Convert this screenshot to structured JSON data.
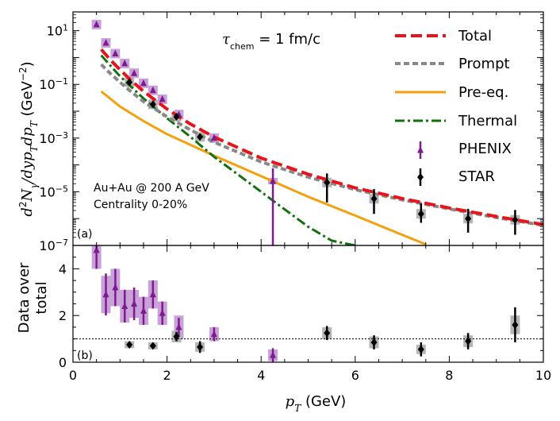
{
  "colors": {
    "total": "#e8141b",
    "prompt": "#888888",
    "preeq": "#f5a00e",
    "thermal": "#13700f",
    "phenix": "#7d1b8f",
    "phenix_box": "#c9a1d9",
    "star": "#000000",
    "star_box": "#b5b5b5"
  },
  "chart_data": [
    {
      "id": "spectrum",
      "panel_label": "(a)",
      "type": "line",
      "yscale": "log",
      "ylabel_text": "d²N_γ / dy p_T dp_T (GeV⁻²)",
      "ylabel": {
        "main": "d",
        "sup": "2",
        "mid": "N",
        "sub": "γ",
        "rest": "/dyp",
        "sub2": "T",
        "rest2": "dp",
        "sub3": "T",
        "unit": " (GeV",
        "unitsup": "−2",
        "close": ")"
      },
      "xlim": [
        0,
        10
      ],
      "ylim": [
        1e-07,
        50
      ],
      "yticks": [
        {
          "value": 1e-07,
          "base": "10",
          "exp": "−7"
        },
        {
          "value": 1e-05,
          "base": "10",
          "exp": "−5"
        },
        {
          "value": 0.001,
          "base": "10",
          "exp": "−3"
        },
        {
          "value": 0.1,
          "base": "10",
          "exp": "−1"
        },
        {
          "value": 10,
          "base": "10",
          "exp": "1"
        }
      ],
      "annotation_tau": {
        "sym": "τ",
        "sub": "chem",
        "rest": " = 1 fm/c"
      },
      "annotation_system": "Au+Au @ 200 A GeV",
      "annotation_centrality": "Centrality 0-20%",
      "legend": [
        {
          "key": "total",
          "label": "Total"
        },
        {
          "key": "prompt",
          "label": "Prompt"
        },
        {
          "key": "preeq",
          "label": "Pre-eq."
        },
        {
          "key": "thermal",
          "label": "Thermal"
        },
        {
          "key": "phenix",
          "label": "PHENIX"
        },
        {
          "key": "star",
          "label": "STAR"
        }
      ],
      "series": [
        {
          "key": "total",
          "name": "Total",
          "x": [
            0.6,
            0.8,
            1.0,
            1.2,
            1.5,
            2.0,
            2.5,
            3.0,
            4.0,
            5.0,
            6.0,
            7.0,
            8.0,
            9.0,
            10.0
          ],
          "y": [
            2.0,
            0.8,
            0.35,
            0.16,
            0.055,
            0.012,
            0.0033,
            0.0011,
            0.00018,
            4.5e-05,
            1.4e-05,
            5.6e-06,
            2.5e-06,
            1.2e-06,
            6e-07
          ]
        },
        {
          "key": "prompt",
          "name": "Prompt",
          "x": [
            0.6,
            0.8,
            1.0,
            1.2,
            1.5,
            2.0,
            2.5,
            3.0,
            4.0,
            5.0,
            6.0,
            7.0,
            8.0,
            9.0,
            10.0
          ],
          "y": [
            0.55,
            0.25,
            0.12,
            0.06,
            0.023,
            0.0062,
            0.002,
            0.0007,
            0.00013,
            3.5e-05,
            1.2e-05,
            5e-06,
            2.3e-06,
            1.1e-06,
            5.6e-07
          ]
        },
        {
          "key": "preeq",
          "name": "Pre-eq.",
          "x": [
            0.6,
            1.0,
            1.5,
            2.0,
            3.0,
            4.0,
            5.0,
            6.0,
            7.0,
            7.5
          ],
          "y": [
            0.055,
            0.015,
            0.0043,
            0.0014,
            0.00022,
            3.8e-05,
            6.5e-06,
            1.3e-06,
            2.5e-07,
            1.1e-07
          ]
        },
        {
          "key": "thermal",
          "name": "Thermal",
          "x": [
            0.6,
            1.0,
            1.5,
            2.0,
            2.5,
            3.0,
            3.5,
            4.0,
            4.5,
            5.0,
            5.5,
            6.0
          ],
          "y": [
            1.2,
            0.2,
            0.03,
            0.0055,
            0.0011,
            0.0002,
            4.5e-05,
            1e-05,
            2.2e-06,
            5e-07,
            1.5e-07,
            1e-07
          ]
        }
      ],
      "phenix": {
        "name": "PHENIX",
        "x": [
          0.5,
          0.7,
          0.9,
          1.1,
          1.3,
          1.5,
          1.7,
          1.9,
          2.25,
          3.0,
          4.25
        ],
        "y": [
          17,
          3.5,
          1.4,
          0.6,
          0.26,
          0.11,
          0.06,
          0.028,
          0.0075,
          0.001,
          2.5e-05
        ],
        "yerr_lo": [
          17,
          3.5,
          1.4,
          0.6,
          0.26,
          0.11,
          0.06,
          0.028,
          0.0075,
          0.001,
          1e-07
        ],
        "yerr_hi": [
          17,
          3.5,
          1.4,
          0.6,
          0.26,
          0.11,
          0.06,
          0.028,
          0.0075,
          0.001,
          5e-05
        ]
      },
      "star": {
        "name": "STAR",
        "x": [
          1.2,
          1.7,
          2.2,
          2.7,
          5.4,
          6.4,
          7.4,
          8.4,
          9.4
        ],
        "y": [
          0.12,
          0.018,
          0.0062,
          0.0011,
          2.2e-05,
          5.5e-06,
          1.5e-06,
          1e-06,
          9e-07
        ],
        "yerr_lo": [
          0.12,
          0.018,
          0.0062,
          0.0011,
          1.8e-05,
          4e-06,
          8e-07,
          7e-07,
          6.5e-07
        ],
        "yerr_hi": [
          0.12,
          0.018,
          0.0062,
          0.0011,
          2.6e-05,
          7e-06,
          2.2e-06,
          1.3e-06,
          1.2e-06
        ]
      }
    },
    {
      "id": "ratio",
      "panel_label": "(b)",
      "type": "scatter",
      "ylabel_line1": "Data over",
      "ylabel_line2": "total",
      "xlabel": {
        "var": "p",
        "sub": "T",
        "unit": " (GeV)"
      },
      "xlim": [
        0,
        10
      ],
      "ylim": [
        0,
        5
      ],
      "xticks": [
        "0",
        "2",
        "4",
        "6",
        "8",
        "10"
      ],
      "xtick_values": [
        0,
        2,
        4,
        6,
        8,
        10
      ],
      "yticks": [
        "0",
        "2",
        "4"
      ],
      "ytick_values": [
        0,
        2,
        4
      ],
      "reference_line": 1,
      "phenix": {
        "name": "PHENIX",
        "x": [
          0.5,
          0.7,
          0.9,
          1.1,
          1.3,
          1.5,
          1.7,
          1.9,
          2.25,
          3.0,
          4.25
        ],
        "y": [
          4.8,
          2.9,
          3.2,
          2.4,
          2.5,
          2.2,
          2.9,
          2.1,
          1.5,
          1.2,
          0.3
        ],
        "err": [
          0.8,
          0.9,
          0.8,
          0.7,
          0.7,
          0.6,
          0.6,
          0.5,
          0.4,
          0.3,
          0.3
        ],
        "box": [
          0.8,
          0.8,
          0.8,
          0.7,
          0.6,
          0.6,
          0.6,
          0.5,
          0.5,
          0.3,
          0.25
        ]
      },
      "star": {
        "name": "STAR",
        "x": [
          1.2,
          1.7,
          2.2,
          2.7,
          5.4,
          6.4,
          7.4,
          8.4,
          9.4
        ],
        "y": [
          0.75,
          0.7,
          1.1,
          0.65,
          1.25,
          0.85,
          0.55,
          0.9,
          1.6
        ],
        "err": [
          0.12,
          0.12,
          0.2,
          0.25,
          0.3,
          0.3,
          0.3,
          0.35,
          0.75
        ],
        "box": [
          0.15,
          0.15,
          0.25,
          0.2,
          0.25,
          0.25,
          0.2,
          0.25,
          0.4
        ]
      }
    }
  ]
}
